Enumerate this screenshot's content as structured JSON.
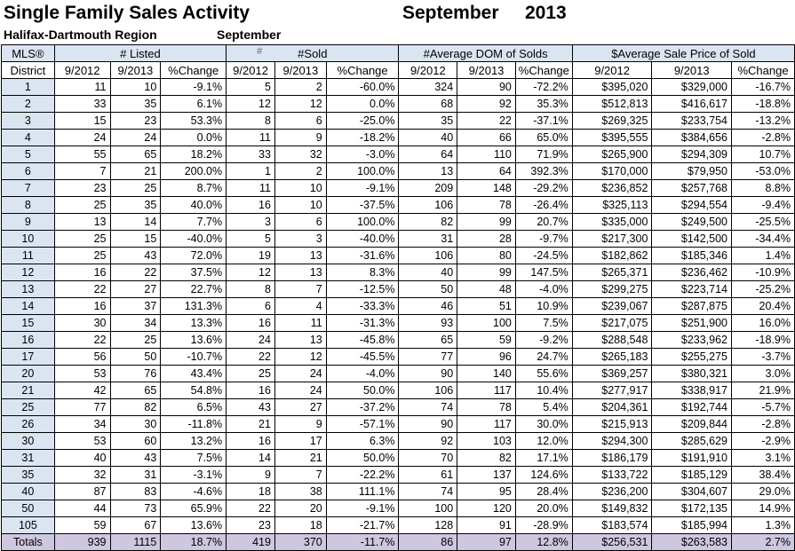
{
  "header": {
    "title": "Single Family Sales Activity",
    "month": "September",
    "year": "2013",
    "region": "Halifax-Dartmouth Region",
    "region_month": "September"
  },
  "table": {
    "mls_label": "MLS®",
    "district_label": "District",
    "groups": [
      "# Listed",
      "#Sold",
      "#Average DOM of Solds",
      "$Average Sale Price of Sold"
    ],
    "sold_prefix": "#",
    "subheaders": [
      "9/2012",
      "9/2013",
      "%Change"
    ],
    "rows": [
      [
        "1",
        "11",
        "10",
        "-9.1%",
        "5",
        "2",
        "-60.0%",
        "324",
        "90",
        "-72.2%",
        "$395,020",
        "$329,000",
        "-16.7%"
      ],
      [
        "2",
        "33",
        "35",
        "6.1%",
        "12",
        "12",
        "0.0%",
        "68",
        "92",
        "35.3%",
        "$512,813",
        "$416,617",
        "-18.8%"
      ],
      [
        "3",
        "15",
        "23",
        "53.3%",
        "8",
        "6",
        "-25.0%",
        "35",
        "22",
        "-37.1%",
        "$269,325",
        "$233,754",
        "-13.2%"
      ],
      [
        "4",
        "24",
        "24",
        "0.0%",
        "11",
        "9",
        "-18.2%",
        "40",
        "66",
        "65.0%",
        "$395,555",
        "$384,656",
        "-2.8%"
      ],
      [
        "5",
        "55",
        "65",
        "18.2%",
        "33",
        "32",
        "-3.0%",
        "64",
        "110",
        "71.9%",
        "$265,900",
        "$294,309",
        "10.7%"
      ],
      [
        "6",
        "7",
        "21",
        "200.0%",
        "1",
        "2",
        "100.0%",
        "13",
        "64",
        "392.3%",
        "$170,000",
        "$79,950",
        "-53.0%"
      ],
      [
        "7",
        "23",
        "25",
        "8.7%",
        "11",
        "10",
        "-9.1%",
        "209",
        "148",
        "-29.2%",
        "$236,852",
        "$257,768",
        "8.8%"
      ],
      [
        "8",
        "25",
        "35",
        "40.0%",
        "16",
        "10",
        "-37.5%",
        "106",
        "78",
        "-26.4%",
        "$325,113",
        "$294,554",
        "-9.4%"
      ],
      [
        "9",
        "13",
        "14",
        "7.7%",
        "3",
        "6",
        "100.0%",
        "82",
        "99",
        "20.7%",
        "$335,000",
        "$249,500",
        "-25.5%"
      ],
      [
        "10",
        "25",
        "15",
        "-40.0%",
        "5",
        "3",
        "-40.0%",
        "31",
        "28",
        "-9.7%",
        "$217,300",
        "$142,500",
        "-34.4%"
      ],
      [
        "11",
        "25",
        "43",
        "72.0%",
        "19",
        "13",
        "-31.6%",
        "106",
        "80",
        "-24.5%",
        "$182,862",
        "$185,346",
        "1.4%"
      ],
      [
        "12",
        "16",
        "22",
        "37.5%",
        "12",
        "13",
        "8.3%",
        "40",
        "99",
        "147.5%",
        "$265,371",
        "$236,462",
        "-10.9%"
      ],
      [
        "13",
        "22",
        "27",
        "22.7%",
        "8",
        "7",
        "-12.5%",
        "50",
        "48",
        "-4.0%",
        "$299,275",
        "$223,714",
        "-25.2%"
      ],
      [
        "14",
        "16",
        "37",
        "131.3%",
        "6",
        "4",
        "-33.3%",
        "46",
        "51",
        "10.9%",
        "$239,067",
        "$287,875",
        "20.4%"
      ],
      [
        "15",
        "30",
        "34",
        "13.3%",
        "16",
        "11",
        "-31.3%",
        "93",
        "100",
        "7.5%",
        "$217,075",
        "$251,900",
        "16.0%"
      ],
      [
        "16",
        "22",
        "25",
        "13.6%",
        "24",
        "13",
        "-45.8%",
        "65",
        "59",
        "-9.2%",
        "$288,548",
        "$233,962",
        "-18.9%"
      ],
      [
        "17",
        "56",
        "50",
        "-10.7%",
        "22",
        "12",
        "-45.5%",
        "77",
        "96",
        "24.7%",
        "$265,183",
        "$255,275",
        "-3.7%"
      ],
      [
        "20",
        "53",
        "76",
        "43.4%",
        "25",
        "24",
        "-4.0%",
        "90",
        "140",
        "55.6%",
        "$369,257",
        "$380,321",
        "3.0%"
      ],
      [
        "21",
        "42",
        "65",
        "54.8%",
        "16",
        "24",
        "50.0%",
        "106",
        "117",
        "10.4%",
        "$277,917",
        "$338,917",
        "21.9%"
      ],
      [
        "25",
        "77",
        "82",
        "6.5%",
        "43",
        "27",
        "-37.2%",
        "74",
        "78",
        "5.4%",
        "$204,361",
        "$192,744",
        "-5.7%"
      ],
      [
        "26",
        "34",
        "30",
        "-11.8%",
        "21",
        "9",
        "-57.1%",
        "90",
        "117",
        "30.0%",
        "$215,913",
        "$209,844",
        "-2.8%"
      ],
      [
        "30",
        "53",
        "60",
        "13.2%",
        "16",
        "17",
        "6.3%",
        "92",
        "103",
        "12.0%",
        "$294,300",
        "$285,629",
        "-2.9%"
      ],
      [
        "31",
        "40",
        "43",
        "7.5%",
        "14",
        "21",
        "50.0%",
        "70",
        "82",
        "17.1%",
        "$186,179",
        "$191,910",
        "3.1%"
      ],
      [
        "35",
        "32",
        "31",
        "-3.1%",
        "9",
        "7",
        "-22.2%",
        "61",
        "137",
        "124.6%",
        "$133,722",
        "$185,129",
        "38.4%"
      ],
      [
        "40",
        "87",
        "83",
        "-4.6%",
        "18",
        "38",
        "111.1%",
        "74",
        "95",
        "28.4%",
        "$236,200",
        "$304,607",
        "29.0%"
      ],
      [
        "50",
        "44",
        "73",
        "65.9%",
        "22",
        "20",
        "-9.1%",
        "100",
        "120",
        "20.0%",
        "$149,832",
        "$172,135",
        "14.9%"
      ],
      [
        "105",
        "59",
        "67",
        "13.6%",
        "23",
        "18",
        "-21.7%",
        "128",
        "91",
        "-28.9%",
        "$183,574",
        "$185,994",
        "1.3%"
      ]
    ],
    "totals": [
      "Totals",
      "939",
      "1115",
      "18.7%",
      "419",
      "370",
      "-11.7%",
      "86",
      "97",
      "12.8%",
      "$256,531",
      "$263,583",
      "2.7%"
    ],
    "colors": {
      "header_fill": "#dbe5f1",
      "totals_fill": "#cfc6e0"
    }
  }
}
